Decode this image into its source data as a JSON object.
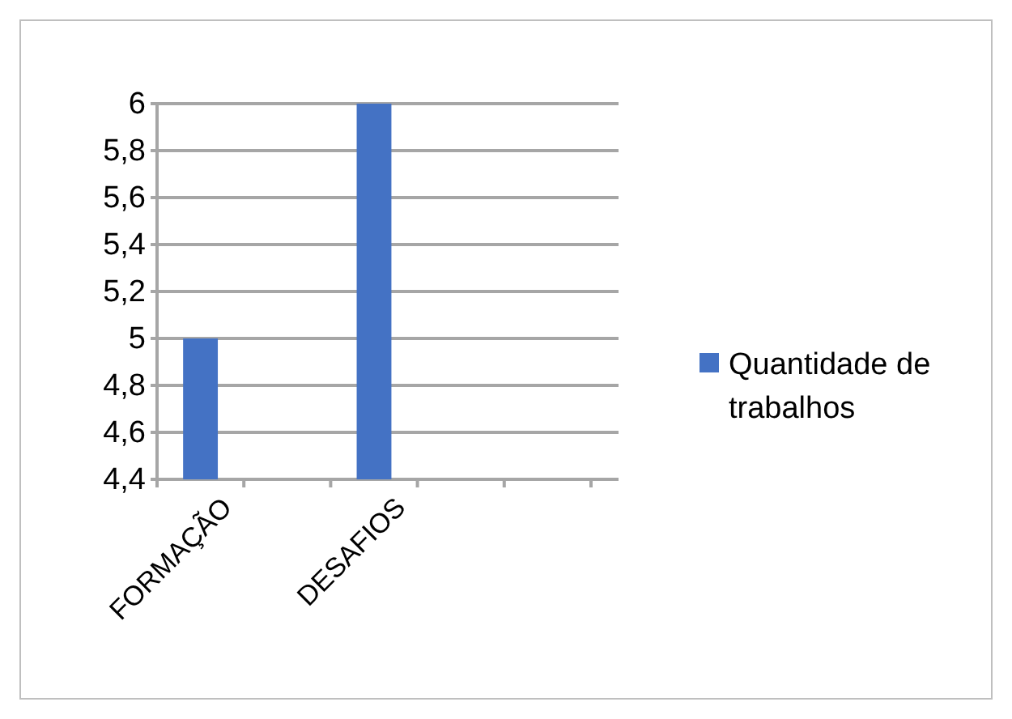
{
  "chart_data": {
    "type": "bar",
    "categories": [
      "FORMAÇÃO",
      null,
      "DESAFIOS",
      null,
      null
    ],
    "series": [
      {
        "name": "Quantidade de trabalhos",
        "color": "#4472c4",
        "values": [
          5,
          null,
          6,
          null,
          null
        ]
      }
    ],
    "ylim": [
      4.4,
      6
    ],
    "yticks": [
      {
        "value": 4.4,
        "label": "4,4"
      },
      {
        "value": 4.6,
        "label": "4,6"
      },
      {
        "value": 4.8,
        "label": "4,8"
      },
      {
        "value": 5,
        "label": "5"
      },
      {
        "value": 5.2,
        "label": "5,2"
      },
      {
        "value": 5.4,
        "label": "5,4"
      },
      {
        "value": 5.6,
        "label": "5,6"
      },
      {
        "value": 5.8,
        "label": "5,8"
      },
      {
        "value": 6,
        "label": "6"
      }
    ],
    "grid": "y",
    "legend": "right"
  }
}
